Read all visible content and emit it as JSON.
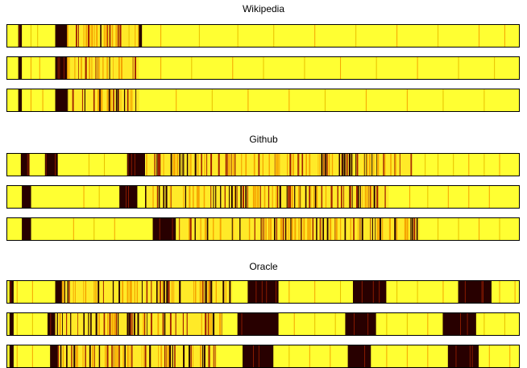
{
  "chart_data": {
    "type": "heatmap",
    "colormap": "hot",
    "colors": {
      "background": "#ffff32",
      "light": "#ffea28",
      "orange": "#f5a300",
      "red": "#a02000",
      "dark": "#280000"
    },
    "x_range": [
      0,
      1
    ],
    "groups": [
      {
        "title": "Wikipedia",
        "strips": [
          {
            "dark": [
              [
                0.023,
                0.03
              ],
              [
                0.095,
                0.118
              ],
              [
                0.258,
                0.264
              ]
            ],
            "dense": [
              [
                0.118,
                0.258
              ]
            ],
            "thin": [
              0.047,
              0.06,
              0.238,
              0.3,
              0.375,
              0.45,
              0.52,
              0.6,
              0.68,
              0.76,
              0.84,
              0.92,
              0.97
            ]
          },
          {
            "dark": [
              [
                0.023,
                0.03
              ],
              [
                0.095,
                0.118
              ]
            ],
            "dense": [
              [
                0.118,
                0.258
              ]
            ],
            "thin": [
              0.047,
              0.064,
              0.3,
              0.36,
              0.44,
              0.5,
              0.58,
              0.65,
              0.72,
              0.8,
              0.88,
              0.95
            ]
          },
          {
            "dark": [
              [
                0.023,
                0.03
              ],
              [
                0.095,
                0.118
              ]
            ],
            "dense": [
              [
                0.118,
                0.258
              ]
            ],
            "thin": [
              0.047,
              0.07,
              0.33,
              0.4,
              0.47,
              0.55,
              0.62,
              0.7,
              0.78,
              0.85,
              0.93
            ]
          }
        ]
      },
      {
        "title": "Github",
        "strips": [
          {
            "dark": [
              [
                0.028,
                0.045
              ],
              [
                0.075,
                0.1
              ],
              [
                0.235,
                0.27
              ]
            ],
            "dense": [
              [
                0.272,
                0.79
              ]
            ],
            "thin": [
              0.16,
              0.19,
              0.815,
              0.84,
              0.87,
              0.9,
              0.93,
              0.96
            ]
          },
          {
            "dark": [
              [
                0.03,
                0.048
              ],
              [
                0.22,
                0.255
              ]
            ],
            "dense": [
              [
                0.27,
                0.745
              ]
            ],
            "thin": [
              0.15,
              0.18,
              0.785,
              0.82,
              0.86,
              0.9,
              0.94
            ]
          },
          {
            "dark": [
              [
                0.03,
                0.048
              ],
              [
                0.285,
                0.33
              ]
            ],
            "dense": [
              [
                0.332,
                0.805
              ]
            ],
            "thin": [
              0.13,
              0.17,
              0.21,
              0.84,
              0.88,
              0.92,
              0.96
            ]
          }
        ]
      },
      {
        "title": "Oracle",
        "strips": [
          {
            "dark": [
              [
                0.006,
                0.014
              ],
              [
                0.095,
                0.108
              ],
              [
                0.47,
                0.53
              ],
              [
                0.675,
                0.74
              ],
              [
                0.88,
                0.945
              ]
            ],
            "dense": [
              [
                0.108,
                0.44
              ]
            ],
            "thin": [
              0.02,
              0.05,
              0.55,
              0.6,
              0.65,
              0.76,
              0.8,
              0.85,
              0.96,
              0.99
            ]
          },
          {
            "dark": [
              [
                0.006,
                0.014
              ],
              [
                0.08,
                0.095
              ],
              [
                0.45,
                0.53
              ],
              [
                0.66,
                0.72
              ],
              [
                0.85,
                0.915
              ]
            ],
            "dense": [
              [
                0.095,
                0.42
              ]
            ],
            "thin": [
              0.02,
              0.05,
              0.56,
              0.6,
              0.64,
              0.74,
              0.78,
              0.82,
              0.93,
              0.97
            ]
          },
          {
            "dark": [
              [
                0.006,
                0.014
              ],
              [
                0.085,
                0.1
              ],
              [
                0.46,
                0.52
              ],
              [
                0.665,
                0.71
              ],
              [
                0.86,
                0.92
              ]
            ],
            "dense": [
              [
                0.1,
                0.41
              ]
            ],
            "thin": [
              0.02,
              0.05,
              0.55,
              0.59,
              0.63,
              0.74,
              0.78,
              0.82,
              0.94,
              0.98
            ]
          }
        ]
      }
    ]
  }
}
